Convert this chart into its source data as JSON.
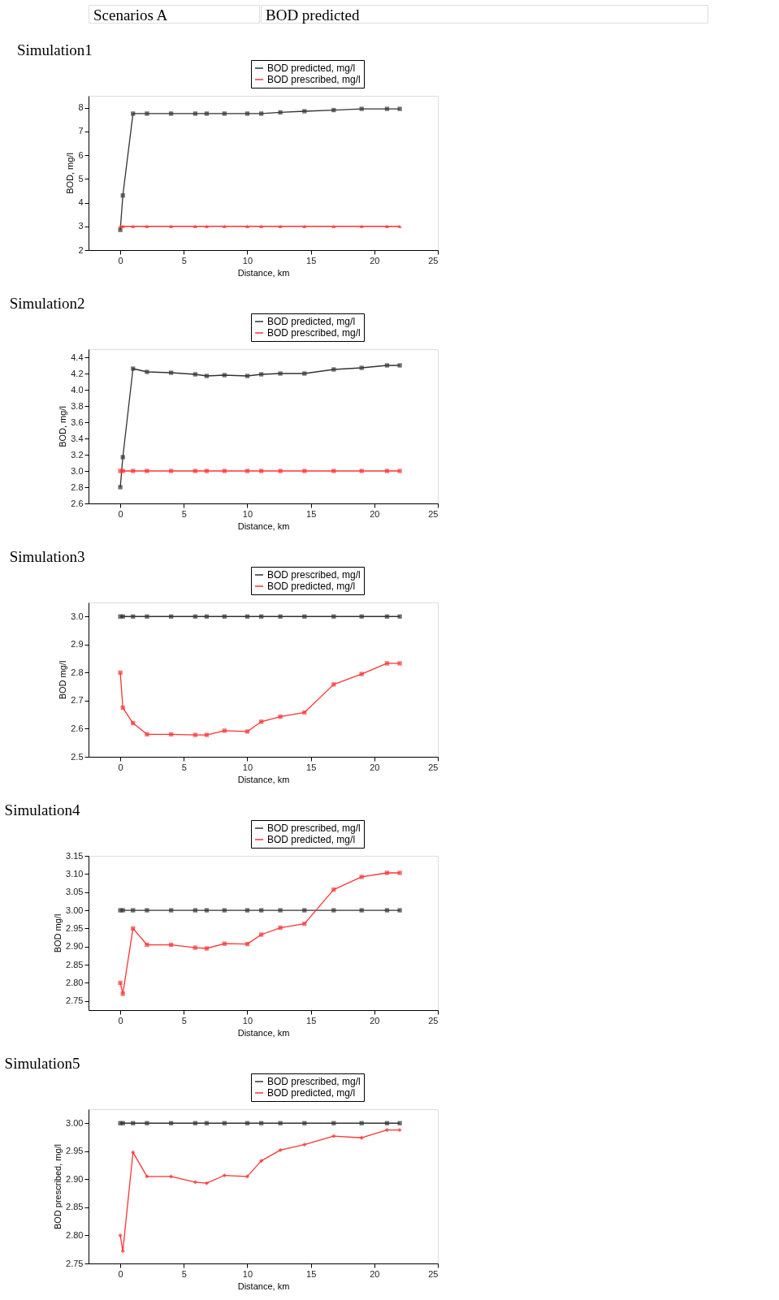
{
  "chart_data": [
    {
      "type": "line",
      "title": "Simulation1",
      "annotations": [
        "Scenarios A",
        "BOD predicted"
      ],
      "xlabel": "Distance, km",
      "ylabel": "BOD, mg/l",
      "legend": "top right",
      "xlim": [
        -2.5,
        25
      ],
      "xticks": [
        0,
        5,
        10,
        15,
        20,
        25
      ],
      "ylim": [
        2,
        8.5
      ],
      "yticks": [
        2,
        3,
        4,
        5,
        6,
        7,
        8
      ],
      "x": [
        0,
        0.2,
        1,
        2.1,
        4,
        5.9,
        6.8,
        8.2,
        10,
        11.1,
        12.6,
        14.5,
        16.8,
        19,
        21,
        22
      ],
      "series": [
        {
          "name": "BOD predicted, mg/l",
          "color": "#333333",
          "marker": "square",
          "values": [
            2.85,
            4.3,
            7.75,
            7.75,
            7.75,
            7.75,
            7.75,
            7.75,
            7.75,
            7.75,
            7.8,
            7.85,
            7.9,
            7.95,
            7.95,
            7.95
          ]
        },
        {
          "name": "BOD prescribed, mg/l",
          "color": "#ff3333",
          "marker": "triangle",
          "values": [
            3,
            3,
            3,
            3,
            3,
            3,
            3,
            3,
            3,
            3,
            3,
            3,
            3,
            3,
            3,
            3
          ]
        }
      ]
    },
    {
      "type": "line",
      "title": "Simulation2",
      "xlabel": "Distance, km",
      "ylabel": "BOD, mg/l",
      "legend": "top right",
      "xlim": [
        -2.5,
        25
      ],
      "xticks": [
        0,
        5,
        10,
        15,
        20,
        25
      ],
      "ylim": [
        2.6,
        4.5
      ],
      "yticks": [
        2.6,
        2.8,
        {
          "value": 3,
          "label": "3.0"
        },
        3.2,
        3.4,
        3.6,
        3.8,
        {
          "value": 4,
          "label": "4.0"
        },
        4.2,
        4.4
      ],
      "x": [
        0,
        0.2,
        1,
        2.1,
        4,
        5.9,
        6.8,
        8.2,
        10,
        11.1,
        12.6,
        14.5,
        16.8,
        19,
        21,
        22
      ],
      "series": [
        {
          "name": "BOD predicted, mg/l",
          "color": "#333333",
          "marker": "square",
          "values": [
            2.8,
            3.17,
            4.26,
            4.22,
            4.21,
            4.19,
            4.17,
            4.18,
            4.17,
            4.19,
            4.2,
            4.2,
            4.25,
            4.27,
            4.3,
            4.3
          ]
        },
        {
          "name": "BOD prescribed, mg/l",
          "color": "#ff3333",
          "marker": "square",
          "values": [
            3,
            3,
            3,
            3,
            3,
            3,
            3,
            3,
            3,
            3,
            3,
            3,
            3,
            3,
            3,
            3
          ]
        }
      ]
    },
    {
      "type": "line",
      "title": "Simulation3",
      "xlabel": "Distance, km",
      "ylabel": "BOD mg/l",
      "legend": "top right",
      "xlim": [
        -2.5,
        25
      ],
      "xticks": [
        0,
        5,
        10,
        15,
        20,
        25
      ],
      "ylim": [
        2.5,
        3.05
      ],
      "yticks": [
        2.5,
        2.6,
        2.7,
        2.8,
        2.9,
        {
          "value": 3,
          "label": "3.0"
        }
      ],
      "x": [
        0,
        0.2,
        1,
        2.1,
        4,
        5.9,
        6.8,
        8.2,
        10,
        11.1,
        12.6,
        14.5,
        16.8,
        19,
        21,
        22
      ],
      "series": [
        {
          "name": "BOD prescribed, mg/l",
          "color": "#333333",
          "marker": "square",
          "values": [
            3,
            3,
            3,
            3,
            3,
            3,
            3,
            3,
            3,
            3,
            3,
            3,
            3,
            3,
            3,
            3
          ]
        },
        {
          "name": "BOD predicted, mg/l",
          "color": "#ff3333",
          "marker": "square",
          "values": [
            2.8,
            2.675,
            2.62,
            2.58,
            2.58,
            2.578,
            2.578,
            2.593,
            2.59,
            2.625,
            2.643,
            2.658,
            2.758,
            2.795,
            2.833,
            2.833
          ]
        }
      ]
    },
    {
      "type": "line",
      "title": "Simulation4",
      "xlabel": "Distance, km",
      "ylabel": "BOD mg/l",
      "legend": "top right",
      "xlim": [
        -2.5,
        25
      ],
      "xticks": [
        0,
        5,
        10,
        15,
        20,
        25
      ],
      "ylim": [
        2.725,
        3.15
      ],
      "yticks": [
        2.75,
        {
          "value": 2.8,
          "label": "2.80"
        },
        2.85,
        {
          "value": 2.9,
          "label": "2.90"
        },
        2.95,
        {
          "value": 3,
          "label": "3.00"
        },
        3.05,
        {
          "value": 3.1,
          "label": "3.10"
        },
        3.15
      ],
      "x": [
        0,
        0.2,
        1,
        2.1,
        4,
        5.9,
        6.8,
        8.2,
        10,
        11.1,
        12.6,
        14.5,
        16.8,
        19,
        21,
        22
      ],
      "series": [
        {
          "name": "BOD prescribed, mg/l",
          "color": "#333333",
          "marker": "square",
          "values": [
            3,
            3,
            3,
            3,
            3,
            3,
            3,
            3,
            3,
            3,
            3,
            3,
            3,
            3,
            3,
            3
          ]
        },
        {
          "name": "BOD predicted, mg/l",
          "color": "#ff3333",
          "marker": "square",
          "values": [
            2.8,
            2.77,
            2.95,
            2.905,
            2.905,
            2.897,
            2.895,
            2.908,
            2.907,
            2.933,
            2.952,
            2.963,
            3.057,
            3.092,
            3.103,
            3.103
          ]
        }
      ]
    },
    {
      "type": "line",
      "title": "Simulation5",
      "xlabel": "Distance, km",
      "ylabel": "BOD prescribed, mg/l",
      "legend": "top right",
      "xlim": [
        -2.5,
        25
      ],
      "xticks": [
        0,
        5,
        10,
        15,
        20,
        25
      ],
      "ylim": [
        2.75,
        3.025
      ],
      "yticks": [
        2.75,
        {
          "value": 2.8,
          "label": "2.80"
        },
        2.85,
        {
          "value": 2.9,
          "label": "2.90"
        },
        2.95,
        {
          "value": 3,
          "label": "3.00"
        }
      ],
      "x": [
        0,
        0.2,
        1,
        2.1,
        4,
        5.9,
        6.8,
        8.2,
        10,
        11.1,
        12.6,
        14.5,
        16.8,
        19,
        21,
        22
      ],
      "series": [
        {
          "name": "BOD prescribed, mg/l",
          "color": "#333333",
          "marker": "square",
          "values": [
            3,
            3,
            3,
            3,
            3,
            3,
            3,
            3,
            3,
            3,
            3,
            3,
            3,
            3,
            3,
            3
          ]
        },
        {
          "name": "BOD predicted, mg/l",
          "color": "#ff3333",
          "marker": "diamond",
          "values": [
            2.8,
            2.772,
            2.948,
            2.905,
            2.905,
            2.895,
            2.893,
            2.907,
            2.905,
            2.933,
            2.952,
            2.962,
            2.977,
            2.974,
            2.988,
            2.988
          ]
        }
      ]
    }
  ]
}
